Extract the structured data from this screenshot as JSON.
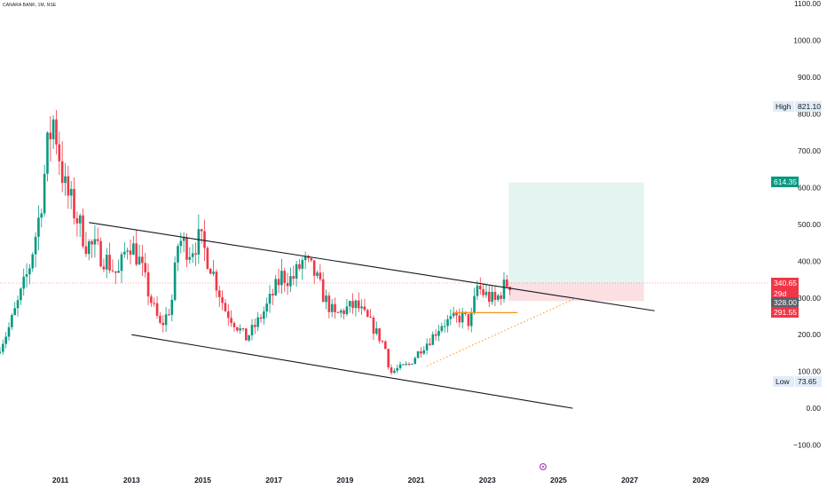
{
  "header": {
    "ticker": "CANARA BANK, 1M, NSE"
  },
  "chart_data": {
    "type": "candlestick",
    "y_ticks": [
      -100,
      0,
      100,
      200,
      300,
      400,
      500,
      600,
      700,
      800,
      900,
      1000,
      1100
    ],
    "y_tick_labels": [
      "−100.00",
      "0.00",
      "100.00",
      "200.00",
      "300.00",
      "400.00",
      "500.00",
      "600.00",
      "700.00",
      "800.00",
      "900.00",
      "1000.00",
      "1100.00"
    ],
    "x_ticks": [
      2011,
      2013,
      2015,
      2017,
      2019,
      2021,
      2023,
      2025,
      2027,
      2029
    ],
    "x_tick_labels": [
      "2011",
      "2013",
      "2015",
      "2017",
      "2019",
      "2021",
      "2023",
      "2025",
      "2027",
      "2029"
    ],
    "ylim": [
      -130,
      1110
    ],
    "xlim": [
      2009.3,
      2030.9
    ],
    "anchors": [
      [
        2009.3,
        150
      ],
      [
        2009.6,
        210
      ],
      [
        2009.9,
        290
      ],
      [
        2010.2,
        380
      ],
      [
        2010.5,
        530
      ],
      [
        2010.75,
        730
      ],
      [
        2010.9,
        790
      ],
      [
        2011.0,
        720
      ],
      [
        2011.2,
        600
      ],
      [
        2011.5,
        530
      ],
      [
        2011.8,
        450
      ],
      [
        2012.1,
        430
      ],
      [
        2012.4,
        400
      ],
      [
        2012.7,
        360
      ],
      [
        2013.0,
        460
      ],
      [
        2013.3,
        400
      ],
      [
        2013.6,
        300
      ],
      [
        2013.9,
        220
      ],
      [
        2014.2,
        280
      ],
      [
        2014.4,
        460
      ],
      [
        2014.7,
        430
      ],
      [
        2015.0,
        460
      ],
      [
        2015.3,
        390
      ],
      [
        2015.7,
        270
      ],
      [
        2016.0,
        230
      ],
      [
        2016.3,
        190
      ],
      [
        2016.6,
        230
      ],
      [
        2016.9,
        280
      ],
      [
        2017.3,
        360
      ],
      [
        2017.6,
        350
      ],
      [
        2017.9,
        400
      ],
      [
        2018.2,
        370
      ],
      [
        2018.5,
        300
      ],
      [
        2018.8,
        250
      ],
      [
        2019.1,
        270
      ],
      [
        2019.4,
        280
      ],
      [
        2019.8,
        230
      ],
      [
        2020.2,
        170
      ],
      [
        2020.35,
        95
      ],
      [
        2020.6,
        110
      ],
      [
        2020.9,
        120
      ],
      [
        2021.2,
        160
      ],
      [
        2021.5,
        190
      ],
      [
        2021.8,
        230
      ],
      [
        2022.1,
        240
      ],
      [
        2022.4,
        250
      ],
      [
        2022.6,
        230
      ],
      [
        2022.8,
        330
      ],
      [
        2023.0,
        310
      ],
      [
        2023.3,
        290
      ],
      [
        2023.55,
        330
      ],
      [
        2023.65,
        340
      ]
    ],
    "channel_upper": {
      "from": [
        2011.8,
        505
      ],
      "to": [
        2027.7,
        265
      ]
    },
    "channel_lower": {
      "from": [
        2013.0,
        200
      ],
      "to": [
        2025.4,
        0
      ]
    },
    "orange_level": {
      "from": [
        2022.05,
        260
      ],
      "to": [
        2023.85,
        260
      ],
      "color": "#f7931a"
    },
    "dotted_trend": {
      "from": [
        2021.3,
        115
      ],
      "to": [
        2025.5,
        300
      ],
      "color": "#f7931a"
    },
    "target_zone": {
      "x": [
        2023.6,
        2027.4
      ],
      "y": [
        340.65,
        614.35
      ],
      "color": "#e4f4f1"
    },
    "stop_zone": {
      "x": [
        2023.6,
        2027.4
      ],
      "y": [
        291.55,
        340.65
      ],
      "color": "#fcdfe2"
    },
    "current_price_line": 340.65,
    "colors": {
      "up": "#089981",
      "down": "#f23645",
      "line": "#131722"
    }
  },
  "price_tags": [
    {
      "label": "",
      "value": "821.10",
      "price": 821.1,
      "bg": "#e1ecf8",
      "fg": "#131722",
      "caption": "High"
    },
    {
      "label": "",
      "value": "614.35",
      "price": 614.35,
      "bg": "#089981",
      "fg": "#ffffff",
      "caption": ""
    },
    {
      "label": "",
      "value": "340.65",
      "price": 340.65,
      "bg": "#f23645",
      "fg": "#ffffff",
      "caption": ""
    },
    {
      "label": "",
      "value": "29d 22h",
      "price": 311.0,
      "bg": "#f23645",
      "fg": "#ffffff",
      "caption": ""
    },
    {
      "label": "",
      "value": "328.00",
      "price": 287.0,
      "bg": "#5d606b",
      "fg": "#ffffff",
      "caption": ""
    },
    {
      "label": "",
      "value": "291.55",
      "price": 261.0,
      "bg": "#f23645",
      "fg": "#ffffff",
      "caption": ""
    },
    {
      "label": "",
      "value": "73.65",
      "price": 73.65,
      "bg": "#e1ecf8",
      "fg": "#131722",
      "caption": "Low"
    }
  ]
}
